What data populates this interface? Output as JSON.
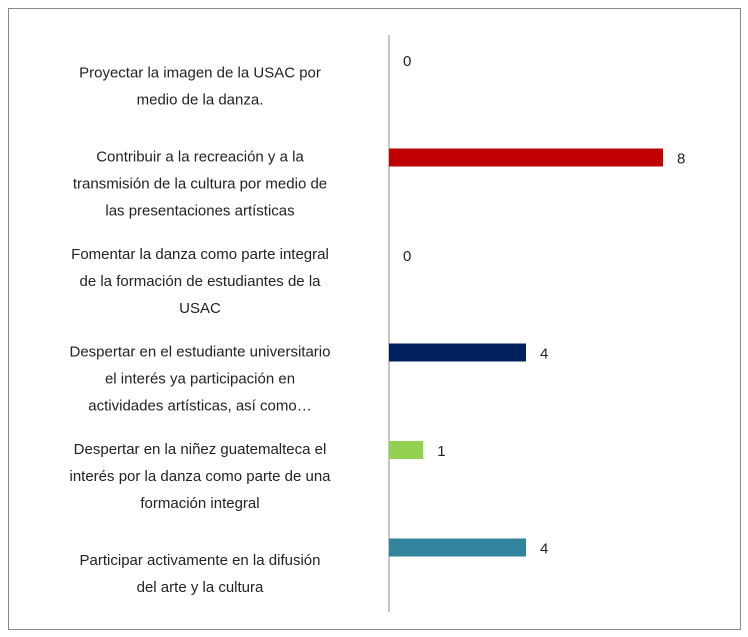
{
  "chart_data": {
    "type": "bar",
    "orientation": "horizontal",
    "categories": [
      "Proyectar la imagen de la USAC por\nmedio de la danza.",
      "Contribuir  a la recreación y a la\ntransmisión de la cultura por medio de\nlas presentaciones artísticas",
      "Fomentar la danza como parte integral\nde la formación de estudiantes de la\nUSAC",
      "Despertar en el estudiante universitario\nel interés ya participación en\nactividades artísticas, así como…",
      "Despertar en la niñez guatemalteca el\ninterés por la danza como parte de una\nformación integral",
      "Participar activamente en la difusión\ndel arte y la cultura"
    ],
    "values": [
      0,
      8,
      0,
      4,
      1,
      4
    ],
    "colors": [
      "#4f81bd",
      "#c00000",
      "#4f81bd",
      "#002060",
      "#92d050",
      "#31849b"
    ],
    "xlim": [
      0,
      8
    ]
  }
}
